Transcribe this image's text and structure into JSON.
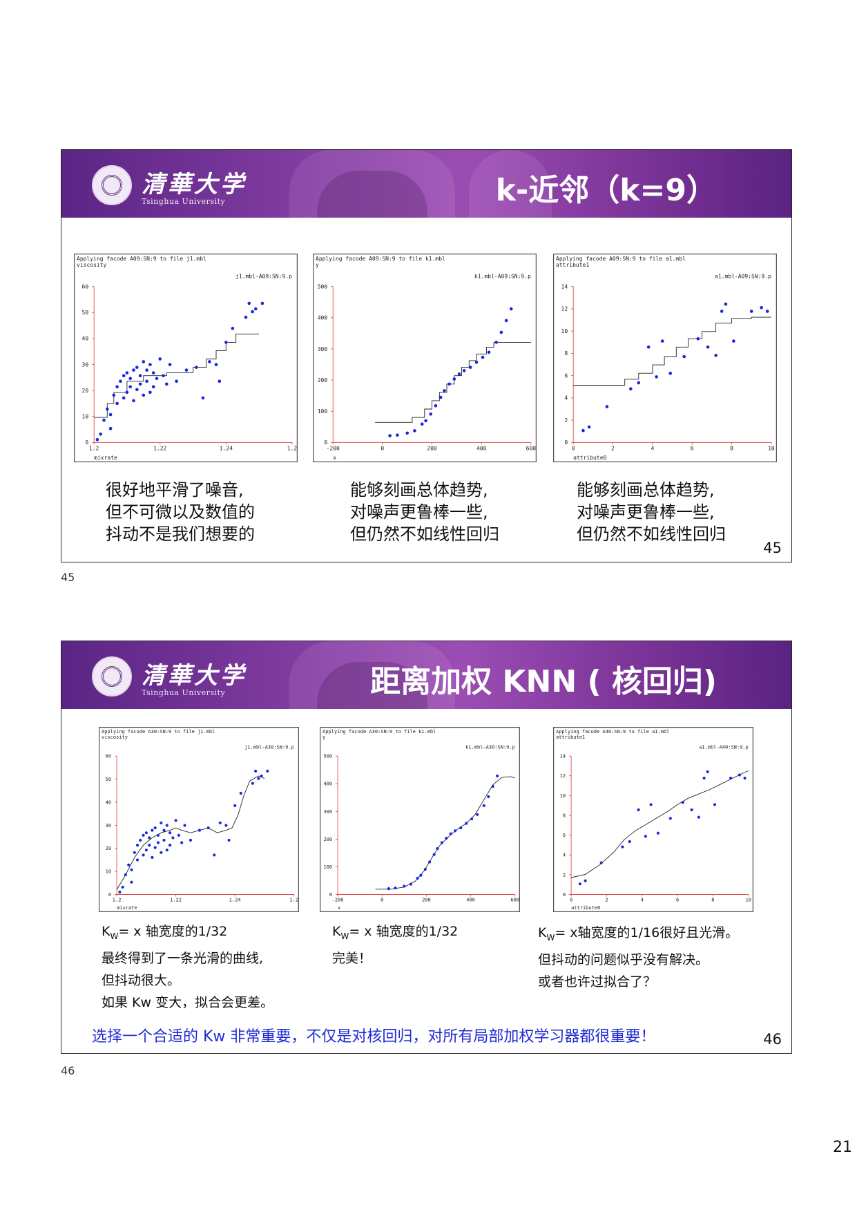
{
  "slides": [
    {
      "university_cn": "清華大学",
      "university_en": "Tsinghua University",
      "title": "k-近邻（k=9）",
      "number": "45",
      "below_label": "45",
      "plots": [
        {
          "header": "Applying facode A09:SN:9 to file j1.mbl",
          "ylabel": "viscosity",
          "xlabel": "mixrate",
          "legend": "j1.mbl-A09:SN:9.p",
          "xticks": [
            "1.2",
            "1.22",
            "1.24",
            "1.2"
          ],
          "yticks": [
            "0",
            "10",
            "20",
            "30",
            "40",
            "50",
            "60"
          ]
        },
        {
          "header": "Applying facode A09:SN:9 to file k1.mbl",
          "ylabel": "y",
          "xlabel": "x",
          "legend": "k1.mbl-A09:SN:9.p",
          "xticks": [
            "-200",
            "0",
            "200",
            "400",
            "600"
          ],
          "yticks": [
            "0",
            "100",
            "200",
            "300",
            "400",
            "500"
          ]
        },
        {
          "header": "Applying facode A09:SN:9 to file a1.mbl",
          "ylabel": "attribute1",
          "xlabel": "attribute0",
          "legend": "a1.mbl-A09:SN:9.p",
          "xticks": [
            "0",
            "2",
            "4",
            "6",
            "8",
            "10"
          ],
          "yticks": [
            "0",
            "2",
            "4",
            "6",
            "8",
            "10",
            "12",
            "14"
          ]
        }
      ],
      "captions": [
        [
          "很好地平滑了噪音,",
          "但不可微以及数值的",
          "抖动不是我们想要的"
        ],
        [
          "能够刻画总体趋势,",
          "对噪声更鲁棒一些,",
          "但仍然不如线性回归"
        ],
        [
          "能够刻画总体趋势,",
          "对噪声更鲁棒一些,",
          "但仍然不如线性回归"
        ]
      ]
    },
    {
      "university_cn": "清華大学",
      "university_en": "Tsinghua University",
      "title": "距离加权 KNN ( 核回归)",
      "number": "46",
      "below_label": "46",
      "plots": [
        {
          "header": "Applying facode A30:SN:9 to file j1.mbl",
          "ylabel": "viscosity",
          "xlabel": "mixrate",
          "legend": "j1.mbl-A30:SN:9.p",
          "xticks": [
            "1.2",
            "1.22",
            "1.24",
            "1.2"
          ],
          "yticks": [
            "0",
            "10",
            "20",
            "30",
            "40",
            "50",
            "60"
          ]
        },
        {
          "header": "Applying facode A30:SN:9 to file k1.mbl",
          "ylabel": "y",
          "xlabel": "x",
          "legend": "k1.mbl-A30:SN:9.p",
          "xticks": [
            "-200",
            "0",
            "200",
            "400",
            "600"
          ],
          "yticks": [
            "0",
            "100",
            "200",
            "300",
            "400",
            "500"
          ]
        },
        {
          "header": "Applying facode A40:SN:9 to file a1.mbl",
          "ylabel": "attribute1",
          "xlabel": "attribute0",
          "legend": "a1.mbl-A40:SN:9.p",
          "xticks": [
            "0",
            "2",
            "4",
            "6",
            "8",
            "10"
          ],
          "yticks": [
            "0",
            "2",
            "4",
            "6",
            "8",
            "10",
            "12",
            "14"
          ]
        }
      ],
      "captions": [
        {
          "kw": "K",
          "kw_sub": "W",
          "line1": "= x 轴宽度的1/32",
          "rest": [
            "最终得到了一条光滑的曲线,",
            "但抖动很大。",
            "如果 Kw 变大，拟合会更差。"
          ]
        },
        {
          "kw": "K",
          "kw_sub": "W",
          "line1": "= x 轴宽度的1/32",
          "rest": [
            "完美！"
          ]
        },
        {
          "kw": "K",
          "kw_sub": "W",
          "line1": "= x轴宽度的1/16很好且光滑。",
          "rest": [
            "但抖动的问题似乎没有解决。",
            "或者也许过拟合了？"
          ]
        }
      ],
      "highlight": "选择一个合适的 Kw 非常重要，不仅是对核回归，对所有局部加权学习器都很重要！"
    }
  ],
  "page_corner": "21",
  "chart_data": [
    {
      "type": "scatter",
      "id": "viscosity",
      "xlim": [
        1.2,
        1.26
      ],
      "ylim": [
        0,
        60
      ],
      "points": [
        [
          1.201,
          1
        ],
        [
          1.202,
          3
        ],
        [
          1.203,
          8
        ],
        [
          1.204,
          12
        ],
        [
          1.205,
          5
        ],
        [
          1.205,
          10
        ],
        [
          1.206,
          17
        ],
        [
          1.207,
          14
        ],
        [
          1.207,
          20
        ],
        [
          1.208,
          22
        ],
        [
          1.209,
          16
        ],
        [
          1.209,
          24
        ],
        [
          1.21,
          18
        ],
        [
          1.21,
          25
        ],
        [
          1.211,
          20
        ],
        [
          1.211,
          23
        ],
        [
          1.212,
          15
        ],
        [
          1.212,
          26
        ],
        [
          1.213,
          19
        ],
        [
          1.213,
          27
        ],
        [
          1.214,
          21
        ],
        [
          1.214,
          24
        ],
        [
          1.215,
          17
        ],
        [
          1.215,
          29
        ],
        [
          1.216,
          22
        ],
        [
          1.216,
          26
        ],
        [
          1.217,
          18
        ],
        [
          1.217,
          28
        ],
        [
          1.218,
          20
        ],
        [
          1.218,
          25
        ],
        [
          1.219,
          23
        ],
        [
          1.22,
          30
        ],
        [
          1.221,
          24
        ],
        [
          1.222,
          21
        ],
        [
          1.223,
          28
        ],
        [
          1.225,
          22
        ],
        [
          1.228,
          26
        ],
        [
          1.231,
          27
        ],
        [
          1.233,
          16
        ],
        [
          1.235,
          29
        ],
        [
          1.237,
          28
        ],
        [
          1.238,
          22
        ],
        [
          1.24,
          36
        ],
        [
          1.242,
          41
        ],
        [
          1.246,
          45
        ],
        [
          1.247,
          50
        ],
        [
          1.248,
          47
        ],
        [
          1.249,
          48
        ],
        [
          1.251,
          50
        ]
      ],
      "knn_step": [
        [
          1.2,
          9
        ],
        [
          1.204,
          9
        ],
        [
          1.204,
          14
        ],
        [
          1.206,
          14
        ],
        [
          1.206,
          18
        ],
        [
          1.21,
          18
        ],
        [
          1.21,
          22
        ],
        [
          1.215,
          22
        ],
        [
          1.215,
          24
        ],
        [
          1.222,
          24
        ],
        [
          1.222,
          25
        ],
        [
          1.23,
          25
        ],
        [
          1.23,
          27
        ],
        [
          1.234,
          27
        ],
        [
          1.234,
          30
        ],
        [
          1.237,
          30
        ],
        [
          1.237,
          33
        ],
        [
          1.24,
          33
        ],
        [
          1.24,
          36
        ],
        [
          1.243,
          36
        ],
        [
          1.243,
          39
        ],
        [
          1.25,
          39
        ]
      ],
      "kernel_curve": [
        [
          1.2,
          2
        ],
        [
          1.203,
          8
        ],
        [
          1.206,
          15
        ],
        [
          1.209,
          20
        ],
        [
          1.212,
          23
        ],
        [
          1.215,
          25
        ],
        [
          1.218,
          26
        ],
        [
          1.22,
          27
        ],
        [
          1.222,
          26
        ],
        [
          1.225,
          25
        ],
        [
          1.228,
          26
        ],
        [
          1.231,
          27
        ],
        [
          1.234,
          25
        ],
        [
          1.237,
          26
        ],
        [
          1.239,
          27
        ],
        [
          1.241,
          32
        ],
        [
          1.243,
          40
        ],
        [
          1.245,
          46
        ],
        [
          1.248,
          48
        ],
        [
          1.25,
          47
        ]
      ]
    },
    {
      "type": "scatter",
      "id": "k1",
      "xlim": [
        -200,
        600
      ],
      "ylim": [
        0,
        500
      ],
      "points": [
        [
          30,
          20
        ],
        [
          60,
          22
        ],
        [
          100,
          28
        ],
        [
          130,
          35
        ],
        [
          160,
          55
        ],
        [
          175,
          65
        ],
        [
          195,
          85
        ],
        [
          215,
          110
        ],
        [
          235,
          135
        ],
        [
          250,
          155
        ],
        [
          270,
          175
        ],
        [
          290,
          190
        ],
        [
          310,
          205
        ],
        [
          330,
          215
        ],
        [
          355,
          225
        ],
        [
          380,
          240
        ],
        [
          405,
          255
        ],
        [
          430,
          270
        ],
        [
          460,
          300
        ],
        [
          480,
          330
        ],
        [
          500,
          365
        ],
        [
          520,
          400
        ]
      ],
      "knn_step": [
        [
          -30,
          60
        ],
        [
          120,
          60
        ],
        [
          120,
          75
        ],
        [
          170,
          75
        ],
        [
          170,
          100
        ],
        [
          200,
          100
        ],
        [
          200,
          125
        ],
        [
          230,
          125
        ],
        [
          230,
          150
        ],
        [
          260,
          150
        ],
        [
          260,
          175
        ],
        [
          290,
          175
        ],
        [
          290,
          200
        ],
        [
          320,
          200
        ],
        [
          320,
          225
        ],
        [
          350,
          225
        ],
        [
          350,
          245
        ],
        [
          380,
          245
        ],
        [
          380,
          265
        ],
        [
          420,
          265
        ],
        [
          420,
          285
        ],
        [
          450,
          285
        ],
        [
          450,
          300
        ],
        [
          600,
          300
        ]
      ],
      "kernel_curve": [
        [
          -30,
          18
        ],
        [
          40,
          18
        ],
        [
          100,
          25
        ],
        [
          150,
          45
        ],
        [
          190,
          80
        ],
        [
          230,
          130
        ],
        [
          260,
          165
        ],
        [
          300,
          195
        ],
        [
          340,
          220
        ],
        [
          380,
          240
        ],
        [
          420,
          270
        ],
        [
          460,
          320
        ],
        [
          500,
          370
        ],
        [
          540,
          395
        ],
        [
          580,
          398
        ],
        [
          600,
          393
        ]
      ]
    },
    {
      "type": "scatter",
      "id": "a1",
      "xlim": [
        0,
        10
      ],
      "ylim": [
        0,
        14
      ],
      "points": [
        [
          0.5,
          1
        ],
        [
          0.8,
          1.3
        ],
        [
          1.7,
          3
        ],
        [
          2.9,
          4.5
        ],
        [
          3.3,
          5
        ],
        [
          3.8,
          8
        ],
        [
          4.2,
          5.5
        ],
        [
          4.5,
          8.5
        ],
        [
          4.9,
          5.8
        ],
        [
          5.6,
          7.2
        ],
        [
          6.3,
          8.7
        ],
        [
          6.8,
          8
        ],
        [
          7.2,
          7.3
        ],
        [
          7.5,
          11
        ],
        [
          7.7,
          11.6
        ],
        [
          8.1,
          8.5
        ],
        [
          9,
          11
        ],
        [
          9.5,
          11.3
        ],
        [
          9.8,
          11
        ]
      ],
      "knn_step": [
        [
          0,
          4.8
        ],
        [
          2.6,
          4.8
        ],
        [
          2.6,
          5.3
        ],
        [
          3.3,
          5.3
        ],
        [
          3.3,
          5.8
        ],
        [
          4.0,
          5.8
        ],
        [
          4.0,
          6.5
        ],
        [
          4.6,
          6.5
        ],
        [
          4.6,
          7.2
        ],
        [
          5.2,
          7.2
        ],
        [
          5.2,
          8.0
        ],
        [
          5.8,
          8.0
        ],
        [
          5.8,
          8.7
        ],
        [
          6.5,
          8.7
        ],
        [
          6.5,
          9.3
        ],
        [
          7.2,
          9.3
        ],
        [
          7.2,
          10.0
        ],
        [
          8.0,
          10.0
        ],
        [
          8.0,
          10.4
        ],
        [
          9.0,
          10.4
        ],
        [
          9.0,
          10.5
        ],
        [
          10,
          10.5
        ]
      ],
      "kernel_curve": [
        [
          0,
          1.6
        ],
        [
          0.8,
          1.9
        ],
        [
          1.6,
          2.8
        ],
        [
          2.4,
          4.0
        ],
        [
          3.0,
          5.2
        ],
        [
          3.6,
          6.0
        ],
        [
          4.2,
          6.6
        ],
        [
          4.8,
          7.2
        ],
        [
          5.4,
          7.8
        ],
        [
          6.0,
          8.5
        ],
        [
          6.6,
          9.1
        ],
        [
          7.2,
          9.5
        ],
        [
          7.8,
          9.9
        ],
        [
          8.4,
          10.4
        ],
        [
          9.0,
          10.9
        ],
        [
          9.6,
          11.4
        ],
        [
          10,
          11.7
        ]
      ]
    }
  ]
}
